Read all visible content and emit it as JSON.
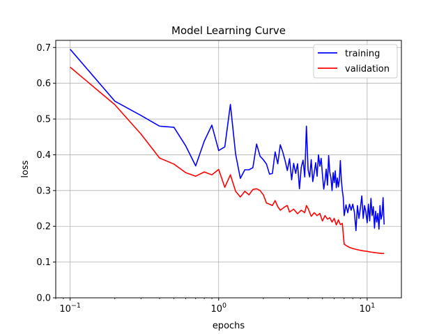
{
  "chart_data": {
    "type": "line",
    "title": "Model Learning Curve",
    "xlabel": "epochs",
    "ylabel": "loss",
    "xscale": "log",
    "xlim": [
      0.08,
      17
    ],
    "ylim": [
      0.0,
      0.72
    ],
    "grid": true,
    "legend_position": "top-right",
    "x_ticks": [
      {
        "value": 0.1,
        "base": "10",
        "exp": "−1"
      },
      {
        "value": 1,
        "base": "10",
        "exp": "0"
      },
      {
        "value": 10,
        "base": "10",
        "exp": "1"
      }
    ],
    "y_ticks": [
      {
        "value": 0.0,
        "label": "0.0"
      },
      {
        "value": 0.1,
        "label": "0.1"
      },
      {
        "value": 0.2,
        "label": "0.2"
      },
      {
        "value": 0.3,
        "label": "0.3"
      },
      {
        "value": 0.4,
        "label": "0.4"
      },
      {
        "value": 0.5,
        "label": "0.5"
      },
      {
        "value": 0.6,
        "label": "0.6"
      },
      {
        "value": 0.7,
        "label": "0.7"
      }
    ],
    "series": [
      {
        "name": "training",
        "color": "#0000ff",
        "points": [
          [
            0.1,
            0.695
          ],
          [
            0.2,
            0.55
          ],
          [
            0.3,
            0.51
          ],
          [
            0.4,
            0.48
          ],
          [
            0.5,
            0.477
          ],
          [
            0.6,
            0.425
          ],
          [
            0.7,
            0.369
          ],
          [
            0.8,
            0.438
          ],
          [
            0.9,
            0.483
          ],
          [
            1.0,
            0.412
          ],
          [
            1.1,
            0.422
          ],
          [
            1.2,
            0.541
          ],
          [
            1.3,
            0.402
          ],
          [
            1.4,
            0.334
          ],
          [
            1.5,
            0.358
          ],
          [
            1.6,
            0.358
          ],
          [
            1.7,
            0.364
          ],
          [
            1.8,
            0.43
          ],
          [
            1.9,
            0.396
          ],
          [
            2.0,
            0.386
          ],
          [
            2.1,
            0.374
          ],
          [
            2.2,
            0.346
          ],
          [
            2.3,
            0.348
          ],
          [
            2.4,
            0.408
          ],
          [
            2.5,
            0.375
          ],
          [
            2.6,
            0.428
          ],
          [
            2.7,
            0.408
          ],
          [
            2.8,
            0.384
          ],
          [
            2.9,
            0.356
          ],
          [
            3.0,
            0.389
          ],
          [
            3.1,
            0.33
          ],
          [
            3.2,
            0.376
          ],
          [
            3.3,
            0.348
          ],
          [
            3.4,
            0.375
          ],
          [
            3.5,
            0.305
          ],
          [
            3.6,
            0.365
          ],
          [
            3.7,
            0.385
          ],
          [
            3.8,
            0.338
          ],
          [
            3.9,
            0.48
          ],
          [
            4.0,
            0.358
          ],
          [
            4.1,
            0.338
          ],
          [
            4.2,
            0.386
          ],
          [
            4.3,
            0.325
          ],
          [
            4.4,
            0.35
          ],
          [
            4.5,
            0.378
          ],
          [
            4.6,
            0.34
          ],
          [
            4.7,
            0.4
          ],
          [
            4.8,
            0.368
          ],
          [
            4.9,
            0.39
          ],
          [
            5.0,
            0.344
          ],
          [
            5.1,
            0.304
          ],
          [
            5.2,
            0.328
          ],
          [
            5.3,
            0.36
          ],
          [
            5.4,
            0.315
          ],
          [
            5.5,
            0.398
          ],
          [
            5.6,
            0.352
          ],
          [
            5.7,
            0.335
          ],
          [
            5.8,
            0.3
          ],
          [
            5.9,
            0.35
          ],
          [
            6.0,
            0.322
          ],
          [
            6.1,
            0.355
          ],
          [
            6.2,
            0.308
          ],
          [
            6.3,
            0.335
          ],
          [
            6.4,
            0.31
          ],
          [
            6.5,
            0.33
          ],
          [
            6.6,
            0.384
          ],
          [
            6.7,
            0.33
          ],
          [
            6.8,
            0.3
          ],
          [
            6.9,
            0.282
          ],
          [
            7.0,
            0.23
          ],
          [
            7.2,
            0.26
          ],
          [
            7.4,
            0.238
          ],
          [
            7.6,
            0.262
          ],
          [
            7.8,
            0.245
          ],
          [
            8.0,
            0.262
          ],
          [
            8.2,
            0.24
          ],
          [
            8.4,
            0.188
          ],
          [
            8.6,
            0.258
          ],
          [
            8.8,
            0.222
          ],
          [
            9.0,
            0.25
          ],
          [
            9.2,
            0.285
          ],
          [
            9.4,
            0.222
          ],
          [
            9.6,
            0.258
          ],
          [
            9.8,
            0.24
          ],
          [
            10.0,
            0.21
          ],
          [
            10.2,
            0.262
          ],
          [
            10.4,
            0.215
          ],
          [
            10.6,
            0.278
          ],
          [
            10.8,
            0.23
          ],
          [
            11.0,
            0.255
          ],
          [
            11.2,
            0.195
          ],
          [
            11.4,
            0.242
          ],
          [
            11.6,
            0.212
          ],
          [
            11.8,
            0.236
          ],
          [
            12.0,
            0.192
          ],
          [
            12.2,
            0.258
          ],
          [
            12.4,
            0.22
          ],
          [
            12.6,
            0.232
          ],
          [
            12.8,
            0.28
          ],
          [
            13.0,
            0.205
          ]
        ]
      },
      {
        "name": "validation",
        "color": "#ff0000",
        "points": [
          [
            0.1,
            0.645
          ],
          [
            0.2,
            0.54
          ],
          [
            0.3,
            0.458
          ],
          [
            0.4,
            0.391
          ],
          [
            0.5,
            0.374
          ],
          [
            0.6,
            0.35
          ],
          [
            0.7,
            0.34
          ],
          [
            0.8,
            0.352
          ],
          [
            0.9,
            0.344
          ],
          [
            1.0,
            0.359
          ],
          [
            1.1,
            0.309
          ],
          [
            1.2,
            0.344
          ],
          [
            1.3,
            0.298
          ],
          [
            1.4,
            0.282
          ],
          [
            1.5,
            0.298
          ],
          [
            1.6,
            0.288
          ],
          [
            1.7,
            0.303
          ],
          [
            1.8,
            0.305
          ],
          [
            1.9,
            0.3
          ],
          [
            2.0,
            0.288
          ],
          [
            2.1,
            0.265
          ],
          [
            2.2,
            0.262
          ],
          [
            2.3,
            0.258
          ],
          [
            2.4,
            0.272
          ],
          [
            2.5,
            0.255
          ],
          [
            2.6,
            0.245
          ],
          [
            2.7,
            0.25
          ],
          [
            2.8,
            0.255
          ],
          [
            2.9,
            0.258
          ],
          [
            3.0,
            0.24
          ],
          [
            3.2,
            0.248
          ],
          [
            3.4,
            0.235
          ],
          [
            3.6,
            0.245
          ],
          [
            3.8,
            0.238
          ],
          [
            3.9,
            0.258
          ],
          [
            4.0,
            0.25
          ],
          [
            4.2,
            0.228
          ],
          [
            4.4,
            0.238
          ],
          [
            4.6,
            0.23
          ],
          [
            4.8,
            0.236
          ],
          [
            5.0,
            0.215
          ],
          [
            5.2,
            0.23
          ],
          [
            5.4,
            0.22
          ],
          [
            5.6,
            0.224
          ],
          [
            5.8,
            0.212
          ],
          [
            6.0,
            0.222
          ],
          [
            6.2,
            0.204
          ],
          [
            6.4,
            0.218
          ],
          [
            6.6,
            0.205
          ],
          [
            6.8,
            0.208
          ],
          [
            7.0,
            0.15
          ],
          [
            7.3,
            0.145
          ],
          [
            7.6,
            0.141
          ],
          [
            8.0,
            0.138
          ],
          [
            8.5,
            0.135
          ],
          [
            9.0,
            0.133
          ],
          [
            9.5,
            0.131
          ],
          [
            10.0,
            0.13
          ],
          [
            10.5,
            0.128
          ],
          [
            11.0,
            0.127
          ],
          [
            11.5,
            0.126
          ],
          [
            12.0,
            0.125
          ],
          [
            12.5,
            0.124
          ],
          [
            13.0,
            0.124
          ]
        ]
      }
    ]
  }
}
